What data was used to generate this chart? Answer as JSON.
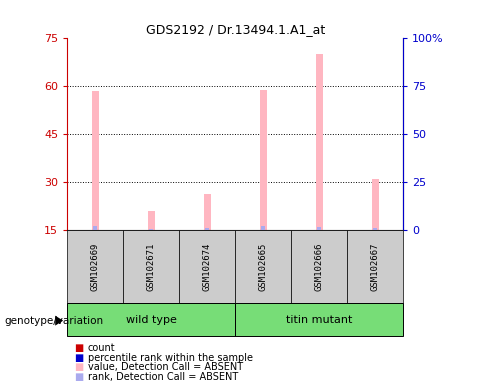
{
  "title": "GDS2192 / Dr.13494.1.A1_at",
  "samples": [
    "GSM102669",
    "GSM102671",
    "GSM102674",
    "GSM102665",
    "GSM102666",
    "GSM102667"
  ],
  "groups": [
    {
      "label": "wild type",
      "indices": [
        0,
        1,
        2
      ],
      "color": "#77dd77"
    },
    {
      "label": "titin mutant",
      "indices": [
        3,
        4,
        5
      ],
      "color": "#77dd77"
    }
  ],
  "pink_bar_tops": [
    58.5,
    21.0,
    26.5,
    59.0,
    70.0,
    31.0
  ],
  "blue_bar_tops": [
    16.5,
    15.5,
    15.8,
    16.5,
    16.2,
    15.8
  ],
  "bar_bottom": 15.0,
  "ylim_left": [
    15,
    75
  ],
  "ylim_right": [
    0,
    100
  ],
  "yticks_left": [
    15,
    30,
    45,
    60,
    75
  ],
  "yticks_right": [
    0,
    25,
    50,
    75,
    100
  ],
  "yticklabels_right": [
    "0",
    "25",
    "50",
    "75",
    "100%"
  ],
  "pink_color": "#ffb6c1",
  "blue_color": "#aaaaee",
  "left_axis_color": "#cc0000",
  "right_axis_color": "#0000cc",
  "grid_color": "black",
  "legend_items": [
    {
      "label": "count",
      "color": "#cc0000"
    },
    {
      "label": "percentile rank within the sample",
      "color": "#0000cc"
    },
    {
      "label": "value, Detection Call = ABSENT",
      "color": "#ffb6c1"
    },
    {
      "label": "rank, Detection Call = ABSENT",
      "color": "#aaaaee"
    }
  ],
  "genotype_label": "genotype/variation",
  "sample_box_color": "#cccccc",
  "figure_bg": "#ffffff",
  "pink_bar_width": 0.12,
  "blue_bar_width": 0.07
}
